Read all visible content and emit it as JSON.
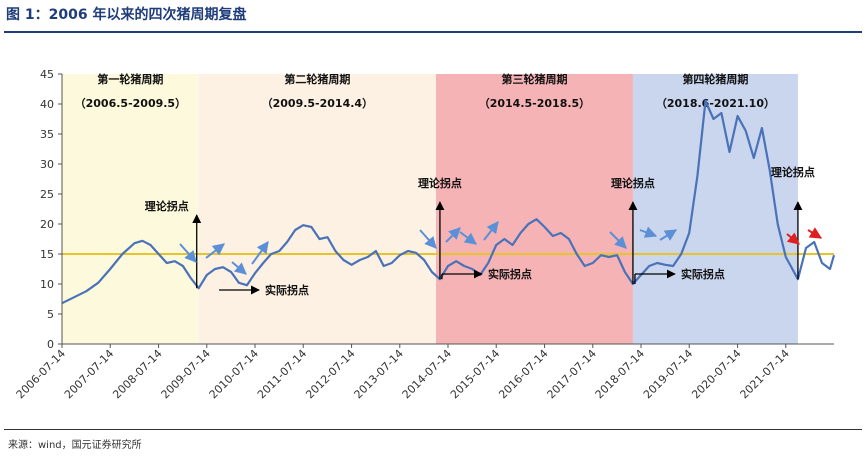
{
  "figure": {
    "title": "图 1：2006 年以来的四次猪周期复盘",
    "source": "来源：wind，国元证券研究所"
  },
  "chart_data": {
    "type": "line",
    "title": "",
    "xlabel": "",
    "ylabel": "",
    "ylim": [
      0,
      45
    ],
    "y_ticks": [
      0,
      5,
      10,
      15,
      20,
      25,
      30,
      35,
      40,
      45
    ],
    "x_range": [
      "2006-07-14",
      "2022-07-14"
    ],
    "x_tick_labels": [
      "2006-07-14",
      "2007-07-14",
      "2008-07-14",
      "2009-07-14",
      "2010-07-14",
      "2011-07-14",
      "2012-07-14",
      "2013-07-14",
      "2014-07-14",
      "2015-07-14",
      "2016-07-14",
      "2017-07-14",
      "2018-07-14",
      "2019-07-14",
      "2020-07-14",
      "2021-07-14"
    ],
    "grid": false,
    "reference_line": {
      "y": 15,
      "color": "#e6c42e"
    },
    "series": [
      {
        "color": "#4a72b8",
        "points": [
          [
            "2006-07-14",
            6.8
          ],
          [
            "2006-10-14",
            7.8
          ],
          [
            "2007-01-14",
            8.8
          ],
          [
            "2007-04-14",
            10.2
          ],
          [
            "2007-07-14",
            12.5
          ],
          [
            "2007-10-14",
            15.0
          ],
          [
            "2008-01-14",
            16.8
          ],
          [
            "2008-03-14",
            17.2
          ],
          [
            "2008-05-14",
            16.5
          ],
          [
            "2008-07-14",
            15.0
          ],
          [
            "2008-09-14",
            13.5
          ],
          [
            "2008-11-14",
            13.8
          ],
          [
            "2009-01-14",
            13.0
          ],
          [
            "2009-03-14",
            11.0
          ],
          [
            "2009-05-14",
            9.3
          ],
          [
            "2009-07-14",
            11.5
          ],
          [
            "2009-09-14",
            12.5
          ],
          [
            "2009-11-14",
            12.8
          ],
          [
            "2010-01-14",
            12.0
          ],
          [
            "2010-03-14",
            10.2
          ],
          [
            "2010-05-14",
            9.8
          ],
          [
            "2010-07-14",
            11.8
          ],
          [
            "2010-09-14",
            13.5
          ],
          [
            "2010-11-14",
            15.0
          ],
          [
            "2011-01-14",
            15.5
          ],
          [
            "2011-03-14",
            17.0
          ],
          [
            "2011-05-14",
            19.0
          ],
          [
            "2011-07-14",
            19.8
          ],
          [
            "2011-09-14",
            19.5
          ],
          [
            "2011-11-14",
            17.5
          ],
          [
            "2012-01-14",
            17.8
          ],
          [
            "2012-03-14",
            15.5
          ],
          [
            "2012-05-14",
            14.0
          ],
          [
            "2012-07-14",
            13.2
          ],
          [
            "2012-09-14",
            14.0
          ],
          [
            "2012-11-14",
            14.5
          ],
          [
            "2013-01-14",
            15.5
          ],
          [
            "2013-03-14",
            13.0
          ],
          [
            "2013-05-14",
            13.5
          ],
          [
            "2013-07-14",
            14.8
          ],
          [
            "2013-09-14",
            15.5
          ],
          [
            "2013-11-14",
            15.2
          ],
          [
            "2014-01-14",
            14.0
          ],
          [
            "2014-03-14",
            12.0
          ],
          [
            "2014-05-14",
            10.8
          ],
          [
            "2014-07-14",
            13.0
          ],
          [
            "2014-09-14",
            13.8
          ],
          [
            "2014-11-14",
            13.0
          ],
          [
            "2015-01-14",
            12.5
          ],
          [
            "2015-03-14",
            11.5
          ],
          [
            "2015-05-14",
            13.5
          ],
          [
            "2015-07-14",
            16.5
          ],
          [
            "2015-09-14",
            17.5
          ],
          [
            "2015-11-14",
            16.5
          ],
          [
            "2016-01-14",
            18.5
          ],
          [
            "2016-03-14",
            20.0
          ],
          [
            "2016-05-14",
            20.8
          ],
          [
            "2016-07-14",
            19.5
          ],
          [
            "2016-09-14",
            18.0
          ],
          [
            "2016-11-14",
            18.5
          ],
          [
            "2017-01-14",
            17.5
          ],
          [
            "2017-03-14",
            15.0
          ],
          [
            "2017-05-14",
            13.0
          ],
          [
            "2017-07-14",
            13.5
          ],
          [
            "2017-09-14",
            14.8
          ],
          [
            "2017-11-14",
            14.5
          ],
          [
            "2018-01-14",
            14.8
          ],
          [
            "2018-03-14",
            12.0
          ],
          [
            "2018-05-14",
            10.0
          ],
          [
            "2018-07-14",
            11.5
          ],
          [
            "2018-09-14",
            13.0
          ],
          [
            "2018-11-14",
            13.5
          ],
          [
            "2019-01-14",
            13.2
          ],
          [
            "2019-03-14",
            13.0
          ],
          [
            "2019-05-14",
            15.0
          ],
          [
            "2019-07-14",
            18.5
          ],
          [
            "2019-09-14",
            28.0
          ],
          [
            "2019-11-14",
            40.5
          ],
          [
            "2020-01-14",
            37.5
          ],
          [
            "2020-03-14",
            38.5
          ],
          [
            "2020-05-14",
            32.0
          ],
          [
            "2020-07-14",
            38.0
          ],
          [
            "2020-09-14",
            35.5
          ],
          [
            "2020-11-14",
            31.0
          ],
          [
            "2021-01-14",
            36.0
          ],
          [
            "2021-03-14",
            29.0
          ],
          [
            "2021-05-14",
            20.0
          ],
          [
            "2021-07-14",
            14.5
          ],
          [
            "2021-09-14",
            12.0
          ],
          [
            "2021-10-14",
            10.8
          ],
          [
            "2021-12-14",
            16.0
          ],
          [
            "2022-02-14",
            17.0
          ],
          [
            "2022-04-14",
            13.5
          ],
          [
            "2022-06-14",
            12.5
          ],
          [
            "2022-07-14",
            14.8
          ]
        ]
      }
    ],
    "regions": [
      {
        "label": "第一轮猪周期",
        "period": "（2006.5-2009.5）",
        "start": "2006-07-14",
        "end": "2009-05-14",
        "color": "#fdf9dc"
      },
      {
        "label": "第二轮猪周期",
        "period": "（2009.5-2014.4）",
        "start": "2009-05-14",
        "end": "2014-04-14",
        "color": "#fdf1e4"
      },
      {
        "label": "第三轮猪周期",
        "period": "（2014.5-2018.5）",
        "start": "2014-04-14",
        "end": "2018-05-14",
        "color": "#f6b3b6"
      },
      {
        "label": "第四轮猪周期",
        "period": "（2018.6-2021.10）",
        "start": "2018-05-14",
        "end": "2021-10-14",
        "color": "#c9d6ee"
      }
    ],
    "annotations": {
      "theory_label": "理论拐点",
      "actual_label": "实际拐点",
      "turning_points": [
        {
          "date": "2009-05-14",
          "value": 9.3,
          "theory_label_pos": "left",
          "show_actual": true
        },
        {
          "date": "2014-05-14",
          "value": 10.8,
          "theory_label_pos": "above",
          "show_actual": true
        },
        {
          "date": "2018-05-14",
          "value": 10.0,
          "theory_label_pos": "above",
          "show_actual": true
        },
        {
          "date": "2021-10-14",
          "value": 10.8,
          "theory_label_pos": "above",
          "show_actual": false
        }
      ]
    }
  }
}
